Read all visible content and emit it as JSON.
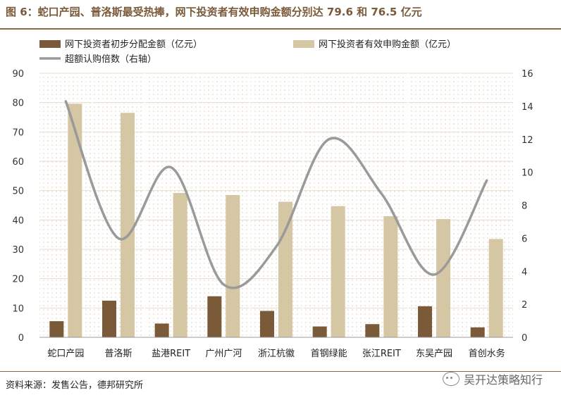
{
  "title": "图 6：蛇口产园、普洛斯最受热捧，网下投资者有效申购金额分别达 79.6 和 76.5 亿元",
  "source": "资料来源：发售公告，德邦研究所",
  "watermark": "吴开达策略知行",
  "colors": {
    "bar_dark": "#7b5a3a",
    "bar_light": "#d5c6a4",
    "line": "#9a9a9a",
    "title": "#7b5a3a"
  },
  "chart_data": {
    "type": "bar",
    "categories": [
      "蛇口产园",
      "普洛斯",
      "盐港REIT",
      "广州广河",
      "浙江杭徽",
      "首钢绿能",
      "张江REIT",
      "东吴产园",
      "首创水务"
    ],
    "series": [
      {
        "name": "网下投资者初步分配金额（亿元）",
        "type": "bar",
        "axis": "left",
        "color": "#7b5a3a",
        "values": [
          5.5,
          12.5,
          4.7,
          14.0,
          9.0,
          3.7,
          4.5,
          10.6,
          3.4
        ]
      },
      {
        "name": "网下投资者有效申购金额（亿元）",
        "type": "bar",
        "axis": "left",
        "color": "#d5c6a4",
        "values": [
          79.6,
          76.5,
          49.2,
          48.5,
          46.2,
          44.7,
          41.3,
          40.3,
          33.5
        ]
      },
      {
        "name": "超额认购倍数（右轴）",
        "type": "line",
        "axis": "right",
        "color": "#9a9a9a",
        "values": [
          14.3,
          6.0,
          10.3,
          3.2,
          5.5,
          12.0,
          8.7,
          3.8,
          9.5
        ]
      }
    ],
    "ylim": [
      0,
      90
    ],
    "yticks": [
      0,
      10,
      20,
      30,
      40,
      50,
      60,
      70,
      80,
      90
    ],
    "y2lim": [
      0,
      16
    ],
    "y2ticks": [
      0,
      2,
      4,
      6,
      8,
      10,
      12,
      14,
      16
    ],
    "grid": true,
    "legend_position": "top"
  }
}
